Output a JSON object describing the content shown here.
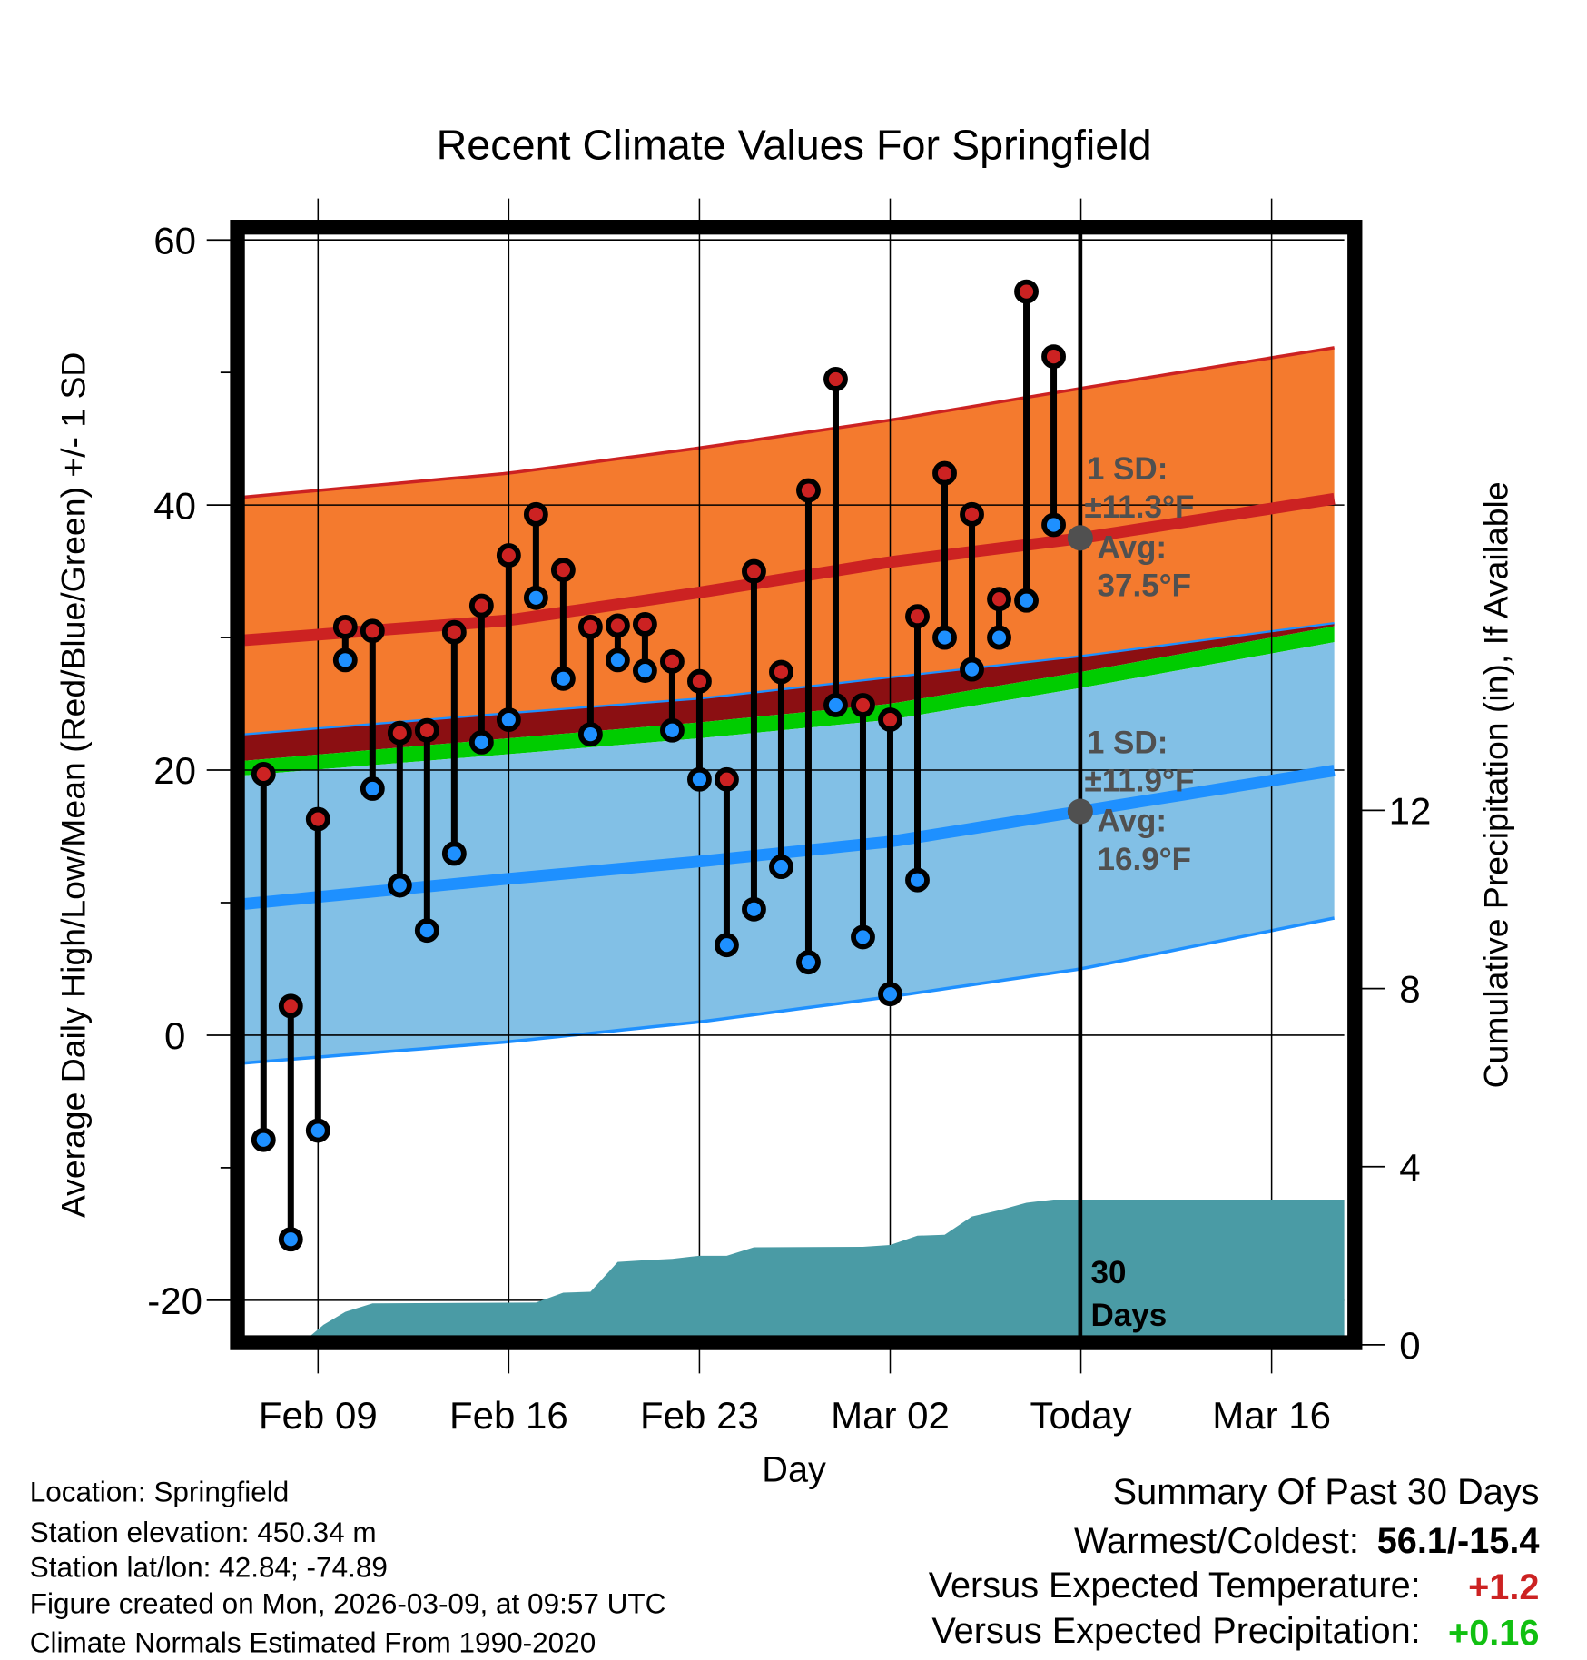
{
  "chart_data": {
    "type": "line",
    "title": "Recent Climate Values For Springfield",
    "xlabel": "Day",
    "ylabel": "Average Daily High/Low/Mean (Red/Blue/Green) +/- 1 SD",
    "y2label": "Cumulative Precipitation (in), If Available",
    "ylim": [
      -22.7,
      60.6
    ],
    "y2lim": [
      0.19,
      20
    ],
    "x_reference_date": "Feb 09",
    "x_ticks": [
      {
        "day": 0,
        "label": "Feb 09"
      },
      {
        "day": 7,
        "label": "Feb 16"
      },
      {
        "day": 14,
        "label": "Feb 23"
      },
      {
        "day": 21,
        "label": "Mar 02"
      },
      {
        "day": 28,
        "label": "Today"
      },
      {
        "day": 35,
        "label": "Mar 16"
      }
    ],
    "y_ticks": [
      60,
      40,
      20,
      0,
      -20
    ],
    "y_tick_labels": [
      "60",
      "40",
      "20",
      "0",
      "-20"
    ],
    "y2_ticks": [
      12,
      8,
      4,
      0
    ],
    "y2_tick_labels": [
      "12",
      "8",
      "4",
      "0"
    ],
    "grid": true,
    "daily": {
      "day": [
        -2,
        -1,
        0,
        1,
        2,
        3,
        4,
        5,
        6,
        7,
        8,
        9,
        10,
        11,
        12,
        13,
        14,
        15,
        16,
        17,
        18,
        19,
        20,
        21,
        22,
        23,
        24,
        25,
        26,
        27
      ],
      "high": [
        19.7,
        2.2,
        16.3,
        30.8,
        30.5,
        22.8,
        23.0,
        30.4,
        32.4,
        36.2,
        39.3,
        35.1,
        30.8,
        30.9,
        31.0,
        28.2,
        26.7,
        19.3,
        35.0,
        27.4,
        41.1,
        49.5,
        24.9,
        23.8,
        31.6,
        42.4,
        39.3,
        32.9,
        56.1,
        51.2
      ],
      "low": [
        -7.9,
        -15.4,
        -7.2,
        28.3,
        18.6,
        11.3,
        7.9,
        13.7,
        22.1,
        23.8,
        33.0,
        26.9,
        22.7,
        28.3,
        27.5,
        23.0,
        19.3,
        6.8,
        9.5,
        12.7,
        5.5,
        24.9,
        7.4,
        3.1,
        11.7,
        30.0,
        27.6,
        30.0,
        32.8,
        38.5
      ]
    },
    "precip_cumulative": {
      "day": [
        -0.3,
        0.2,
        1,
        2,
        8,
        9,
        10,
        11,
        12,
        13,
        14,
        15,
        16,
        20,
        21,
        22,
        23,
        24,
        25,
        26,
        27,
        28,
        37.7
      ],
      "inches": [
        0.19,
        0.45,
        0.74,
        0.93,
        0.95,
        1.17,
        1.19,
        1.86,
        1.9,
        1.93,
        2.0,
        2.0,
        2.19,
        2.2,
        2.24,
        2.45,
        2.47,
        2.88,
        3.02,
        3.19,
        3.26,
        3.26,
        3.26
      ]
    },
    "normals": {
      "day": [
        -2.7,
        7,
        14,
        21,
        28,
        37.7
      ],
      "high_mean": [
        29.8,
        31.3,
        33.4,
        35.7,
        37.5,
        40.6
      ],
      "high_upper_sd": [
        40.6,
        42.4,
        44.3,
        46.4,
        48.8,
        52.0
      ],
      "overlap_top": [
        22.7,
        24.3,
        25.4,
        27.0,
        28.6,
        31.2
      ],
      "mean_top": [
        20.7,
        22.4,
        23.6,
        25.0,
        27.4,
        31.0
      ],
      "mean_bottom": [
        19.6,
        21.2,
        22.4,
        23.8,
        26.2,
        29.8
      ],
      "low_mean": [
        9.9,
        11.8,
        13.1,
        14.6,
        16.9,
        20.1
      ],
      "low_lower_sd": [
        -2.1,
        -0.5,
        1.0,
        2.9,
        5.0,
        9.0
      ]
    },
    "annotations": {
      "high": {
        "l1": "1 SD:",
        "l2": "±11.3°F",
        "l3": "Avg:",
        "l4": "37.5°F",
        "value": 37.5
      },
      "low": {
        "l1": "1 SD:",
        "l2": "±11.9°F",
        "l3": "Avg:",
        "l4": "16.9°F",
        "value": 16.9
      },
      "days": {
        "l1": "30",
        "l2": "Days"
      }
    },
    "colors": {
      "high_band": "#f47a2e",
      "high_line": "#cc2222",
      "overlap": "#8b0f12",
      "mean": "#00cc00",
      "low_band": "#82c0e6",
      "low_line": "#1e90ff",
      "precip": "#4a9ba5",
      "annotation": "#505050"
    }
  },
  "footer": {
    "location": "Location: Springfield",
    "elevation": "Station elevation: 450.34 m",
    "latlon": "Station lat/lon: 42.84; -74.89",
    "created": "Figure created on Mon, 2026-03-09, at 09:57 UTC",
    "normals": "Climate Normals Estimated From 1990-2020"
  },
  "summary": {
    "title": "Summary Of Past 30 Days",
    "warmest_label": "Warmest/Coldest:",
    "warmest_value": "56.1/-15.4",
    "temp_label": "Versus Expected Temperature:",
    "temp_value": "+1.2",
    "precip_label": "Versus Expected Precipitation:",
    "precip_value": "+0.16"
  }
}
